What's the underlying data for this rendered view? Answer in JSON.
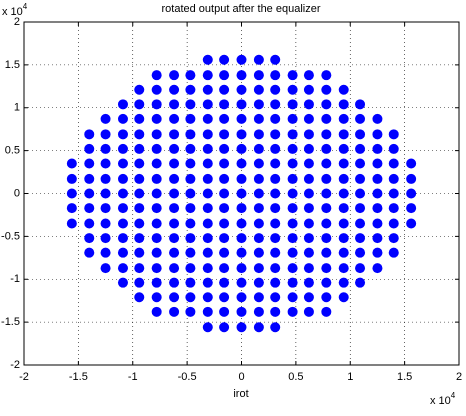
{
  "chart_data": {
    "type": "scatter",
    "title": "rotated output after the equalizer",
    "xlabel": "irot",
    "x_multiplier": {
      "base": "x 10",
      "exponent": "4"
    },
    "y_multiplier": {
      "base": "x 10",
      "exponent": "4"
    },
    "xlim": [
      -2,
      2
    ],
    "ylim": [
      -2,
      2
    ],
    "xticks": [
      -2,
      -1.5,
      -1,
      -0.5,
      0,
      0.5,
      1,
      1.5,
      2
    ],
    "yticks": [
      -2,
      -1.5,
      -1,
      -0.5,
      0,
      0.5,
      1,
      1.5,
      2
    ],
    "grid": true,
    "color": "#0000ff",
    "x": [
      -0.31,
      -0.16,
      0,
      0.16,
      0.31,
      -0.78,
      -0.62,
      -0.47,
      -0.31,
      -0.16,
      0,
      0.16,
      0.31,
      0.47,
      0.62,
      0.78,
      -0.94,
      -0.78,
      -0.62,
      -0.47,
      -0.31,
      -0.16,
      0,
      0.16,
      0.31,
      0.47,
      0.62,
      0.78,
      0.94,
      -1.09,
      -0.94,
      -0.78,
      -0.62,
      -0.47,
      -0.31,
      -0.16,
      0,
      0.16,
      0.31,
      0.47,
      0.62,
      0.78,
      0.94,
      1.09,
      -1.25,
      -1.09,
      -0.94,
      -0.78,
      -0.62,
      -0.47,
      -0.31,
      -0.16,
      0,
      0.16,
      0.31,
      0.47,
      0.62,
      0.78,
      0.94,
      1.09,
      1.25,
      -1.4,
      -1.25,
      -1.09,
      -0.94,
      -0.78,
      -0.62,
      -0.47,
      -0.31,
      -0.16,
      0,
      0.16,
      0.31,
      0.47,
      0.62,
      0.78,
      0.94,
      1.09,
      1.25,
      1.4,
      -1.4,
      -1.25,
      -1.09,
      -0.94,
      -0.78,
      -0.62,
      -0.47,
      -0.31,
      -0.16,
      0,
      0.16,
      0.31,
      0.47,
      0.62,
      0.78,
      0.94,
      1.09,
      1.25,
      1.4,
      -1.56,
      -1.4,
      -1.25,
      -1.09,
      -0.94,
      -0.78,
      -0.62,
      -0.47,
      -0.31,
      -0.16,
      0,
      0.16,
      0.31,
      0.47,
      0.62,
      0.78,
      0.94,
      1.09,
      1.25,
      1.4,
      1.56,
      -1.56,
      -1.4,
      -1.25,
      -1.09,
      -0.94,
      -0.78,
      -0.62,
      -0.47,
      -0.31,
      -0.16,
      0,
      0.16,
      0.31,
      0.47,
      0.62,
      0.78,
      0.94,
      1.09,
      1.25,
      1.4,
      1.56,
      -1.56,
      -1.4,
      -1.25,
      -1.09,
      -0.94,
      -0.78,
      -0.62,
      -0.47,
      -0.31,
      -0.16,
      0,
      0.16,
      0.31,
      0.47,
      0.62,
      0.78,
      0.94,
      1.09,
      1.25,
      1.4,
      1.56,
      -1.56,
      -1.4,
      -1.25,
      -1.09,
      -0.94,
      -0.78,
      -0.62,
      -0.47,
      -0.31,
      -0.16,
      0,
      0.16,
      0.31,
      0.47,
      0.62,
      0.78,
      0.94,
      1.09,
      1.25,
      1.4,
      1.56,
      -1.56,
      -1.4,
      -1.25,
      -1.09,
      -0.94,
      -0.78,
      -0.62,
      -0.47,
      -0.31,
      -0.16,
      0,
      0.16,
      0.31,
      0.47,
      0.62,
      0.78,
      0.94,
      1.09,
      1.25,
      1.4,
      1.56,
      -1.4,
      -1.25,
      -1.09,
      -0.94,
      -0.78,
      -0.62,
      -0.47,
      -0.31,
      -0.16,
      0,
      0.16,
      0.31,
      0.47,
      0.62,
      0.78,
      0.94,
      1.09,
      1.25,
      1.4,
      -1.4,
      -1.25,
      -1.09,
      -0.94,
      -0.78,
      -0.62,
      -0.47,
      -0.31,
      -0.16,
      0,
      0.16,
      0.31,
      0.47,
      0.62,
      0.78,
      0.94,
      1.09,
      1.25,
      1.4,
      -1.25,
      -1.09,
      -0.94,
      -0.78,
      -0.62,
      -0.47,
      -0.31,
      -0.16,
      0,
      0.16,
      0.31,
      0.47,
      0.62,
      0.78,
      0.94,
      1.09,
      1.25,
      -1.09,
      -0.94,
      -0.78,
      -0.62,
      -0.47,
      -0.31,
      -0.16,
      0,
      0.16,
      0.31,
      0.47,
      0.62,
      0.78,
      0.94,
      1.09,
      -0.94,
      -0.78,
      -0.62,
      -0.47,
      -0.31,
      -0.16,
      0,
      0.16,
      0.31,
      0.47,
      0.62,
      0.78,
      0.94,
      -0.78,
      -0.62,
      -0.47,
      -0.31,
      -0.16,
      0,
      0.16,
      0.31,
      0.47,
      0.62,
      0.78,
      -0.31,
      -0.16,
      0,
      0.16,
      0.31
    ],
    "values": [
      1.56,
      1.56,
      1.56,
      1.56,
      1.56,
      1.38,
      1.38,
      1.38,
      1.38,
      1.38,
      1.38,
      1.38,
      1.38,
      1.38,
      1.38,
      1.38,
      1.21,
      1.21,
      1.21,
      1.21,
      1.21,
      1.21,
      1.21,
      1.21,
      1.21,
      1.21,
      1.21,
      1.21,
      1.21,
      1.04,
      1.04,
      1.04,
      1.04,
      1.04,
      1.04,
      1.04,
      1.04,
      1.04,
      1.04,
      1.04,
      1.04,
      1.04,
      1.04,
      1.04,
      0.87,
      0.87,
      0.87,
      0.87,
      0.87,
      0.87,
      0.87,
      0.87,
      0.87,
      0.87,
      0.87,
      0.87,
      0.87,
      0.87,
      0.87,
      0.87,
      0.87,
      0.69,
      0.69,
      0.69,
      0.69,
      0.69,
      0.69,
      0.69,
      0.69,
      0.69,
      0.69,
      0.69,
      0.69,
      0.69,
      0.69,
      0.69,
      0.69,
      0.69,
      0.69,
      0.69,
      0.52,
      0.52,
      0.52,
      0.52,
      0.52,
      0.52,
      0.52,
      0.52,
      0.52,
      0.52,
      0.52,
      0.52,
      0.52,
      0.52,
      0.52,
      0.52,
      0.52,
      0.52,
      0.52,
      0.35,
      0.35,
      0.35,
      0.35,
      0.35,
      0.35,
      0.35,
      0.35,
      0.35,
      0.35,
      0.35,
      0.35,
      0.35,
      0.35,
      0.35,
      0.35,
      0.35,
      0.35,
      0.35,
      0.35,
      0.35,
      0.17,
      0.17,
      0.17,
      0.17,
      0.17,
      0.17,
      0.17,
      0.17,
      0.17,
      0.17,
      0.17,
      0.17,
      0.17,
      0.17,
      0.17,
      0.17,
      0.17,
      0.17,
      0.17,
      0.17,
      0.17,
      0,
      0,
      0,
      0,
      0,
      0,
      0,
      0,
      0,
      0,
      0,
      0,
      0,
      0,
      0,
      0,
      0,
      0,
      0,
      0,
      0,
      -0.17,
      -0.17,
      -0.17,
      -0.17,
      -0.17,
      -0.17,
      -0.17,
      -0.17,
      -0.17,
      -0.17,
      -0.17,
      -0.17,
      -0.17,
      -0.17,
      -0.17,
      -0.17,
      -0.17,
      -0.17,
      -0.17,
      -0.17,
      -0.17,
      -0.35,
      -0.35,
      -0.35,
      -0.35,
      -0.35,
      -0.35,
      -0.35,
      -0.35,
      -0.35,
      -0.35,
      -0.35,
      -0.35,
      -0.35,
      -0.35,
      -0.35,
      -0.35,
      -0.35,
      -0.35,
      -0.35,
      -0.35,
      -0.35,
      -0.52,
      -0.52,
      -0.52,
      -0.52,
      -0.52,
      -0.52,
      -0.52,
      -0.52,
      -0.52,
      -0.52,
      -0.52,
      -0.52,
      -0.52,
      -0.52,
      -0.52,
      -0.52,
      -0.52,
      -0.52,
      -0.52,
      -0.69,
      -0.69,
      -0.69,
      -0.69,
      -0.69,
      -0.69,
      -0.69,
      -0.69,
      -0.69,
      -0.69,
      -0.69,
      -0.69,
      -0.69,
      -0.69,
      -0.69,
      -0.69,
      -0.69,
      -0.69,
      -0.69,
      -0.87,
      -0.87,
      -0.87,
      -0.87,
      -0.87,
      -0.87,
      -0.87,
      -0.87,
      -0.87,
      -0.87,
      -0.87,
      -0.87,
      -0.87,
      -0.87,
      -0.87,
      -0.87,
      -0.87,
      -1.04,
      -1.04,
      -1.04,
      -1.04,
      -1.04,
      -1.04,
      -1.04,
      -1.04,
      -1.04,
      -1.04,
      -1.04,
      -1.04,
      -1.04,
      -1.04,
      -1.04,
      -1.21,
      -1.21,
      -1.21,
      -1.21,
      -1.21,
      -1.21,
      -1.21,
      -1.21,
      -1.21,
      -1.21,
      -1.21,
      -1.21,
      -1.21,
      -1.38,
      -1.38,
      -1.38,
      -1.38,
      -1.38,
      -1.38,
      -1.38,
      -1.38,
      -1.38,
      -1.38,
      -1.38,
      -1.56,
      -1.56,
      -1.56,
      -1.56,
      -1.56
    ]
  }
}
